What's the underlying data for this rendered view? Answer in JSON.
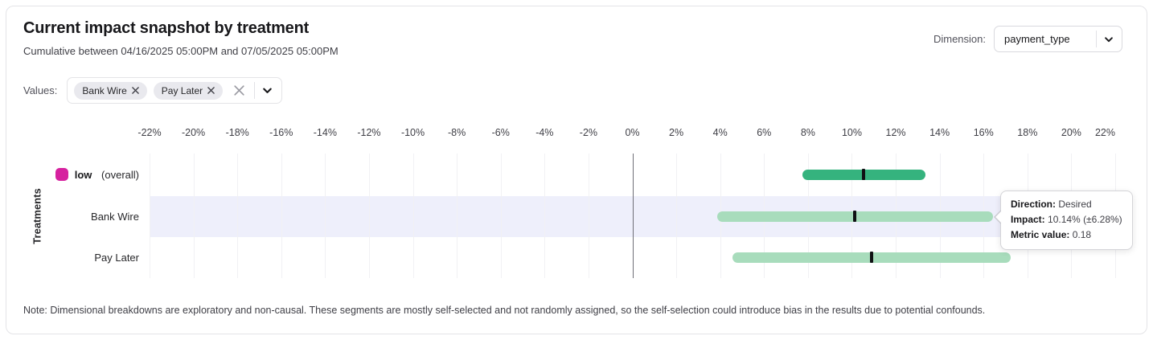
{
  "header": {
    "title": "Current impact snapshot by treatment",
    "subtitle": "Cumulative between 04/16/2025 05:00PM and 07/05/2025 05:00PM"
  },
  "dimension": {
    "label": "Dimension:",
    "selected": "payment_type"
  },
  "values_filter": {
    "label": "Values:",
    "chips": [
      {
        "label": "Bank Wire"
      },
      {
        "label": "Pay Later"
      }
    ]
  },
  "chart_data": {
    "type": "bar",
    "orientation": "horizontal",
    "ylabel": "Treatments",
    "x_unit": "%",
    "xlim": [
      -22,
      22
    ],
    "tick_step": 2,
    "zero_line": 0,
    "grid": true,
    "tick_labels": [
      "-22%",
      "-20%",
      "-18%",
      "-16%",
      "-14%",
      "-12%",
      "-10%",
      "-8%",
      "-6%",
      "-4%",
      "-2%",
      "0%",
      "2%",
      "4%",
      "6%",
      "8%",
      "10%",
      "12%",
      "14%",
      "16%",
      "18%",
      "20%",
      "22%"
    ],
    "rows": [
      {
        "label": "low",
        "label_bold": true,
        "label_note": "(overall)",
        "legend_color": "#d6219f",
        "bar_color": "#35b37e",
        "impact_pct": 10.55,
        "ci_low_pct": 7.75,
        "ci_high_pct": 13.35,
        "highlighted": false
      },
      {
        "label": "Bank Wire",
        "label_bold": false,
        "label_note": "",
        "legend_color": "",
        "bar_color": "#a8dcbc",
        "impact_pct": 10.14,
        "ci_low_pct": 3.86,
        "ci_high_pct": 16.42,
        "highlighted": true
      },
      {
        "label": "Pay Later",
        "label_bold": false,
        "label_note": "",
        "legend_color": "",
        "bar_color": "#a8dcbc",
        "impact_pct": 10.89,
        "ci_low_pct": 4.55,
        "ci_high_pct": 17.25,
        "highlighted": false
      }
    ]
  },
  "tooltip": {
    "direction_label": "Direction:",
    "direction_value": "Desired",
    "impact_label": "Impact:",
    "impact_value": "10.14% (±6.28%)",
    "metric_label": "Metric value:",
    "metric_value": "0.18"
  },
  "footnote": "Note: Dimensional breakdowns are exploratory and non-causal. These segments are mostly self-selected and not randomly assigned, so the self-selection could introduce bias in the results due to potential confounds."
}
